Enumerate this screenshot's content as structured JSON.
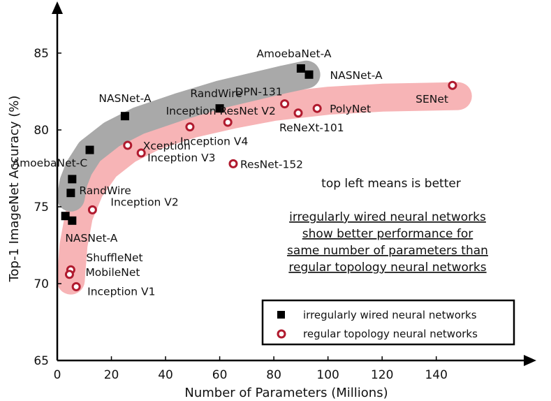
{
  "chart_data": {
    "type": "scatter",
    "xlabel": "Number of Parameters (Millions)",
    "ylabel": "Top-1 ImageNet Accuracy (%)",
    "xlim": [
      0,
      170
    ],
    "ylim": [
      65,
      88
    ],
    "xticks": [
      0,
      20,
      40,
      60,
      80,
      100,
      120,
      140
    ],
    "yticks": [
      65,
      70,
      75,
      80,
      85
    ],
    "series": [
      {
        "name": "irregularly wired neural networks",
        "marker": "square",
        "color": "#000000",
        "points": [
          {
            "label": "AmoebaNet-A",
            "x": 90,
            "y": 84.0
          },
          {
            "label": "NASNet-A",
            "x": 93,
            "y": 83.6
          },
          {
            "label": "RandWire",
            "x": 60,
            "y": 81.4
          },
          {
            "label": "NASNet-A",
            "x": 25,
            "y": 80.9
          },
          {
            "label": "",
            "x": 12,
            "y": 78.7
          },
          {
            "label": "AmoebaNet-C",
            "x": 5.5,
            "y": 76.8
          },
          {
            "label": "RandWire",
            "x": 5,
            "y": 75.9
          },
          {
            "label": "",
            "x": 3,
            "y": 74.4
          },
          {
            "label": "NASNet-A",
            "x": 5.5,
            "y": 74.1
          }
        ]
      },
      {
        "name": "regular topology neural networks",
        "marker": "ring",
        "color": "#b01a2e",
        "points": [
          {
            "label": "SENet",
            "x": 146,
            "y": 82.9
          },
          {
            "label": "DPN-131",
            "x": 84,
            "y": 81.7
          },
          {
            "label": "PolyNet",
            "x": 96,
            "y": 81.4
          },
          {
            "label": "ReNeXt-101",
            "x": 89,
            "y": 81.1
          },
          {
            "label": "Inception ResNet V2",
            "x": 63,
            "y": 80.5
          },
          {
            "label": "Inception V4",
            "x": 49,
            "y": 80.2
          },
          {
            "label": "Xception",
            "x": 26,
            "y": 79.0
          },
          {
            "label": "Inception V3",
            "x": 31,
            "y": 78.5
          },
          {
            "label": "ResNet-152",
            "x": 65,
            "y": 77.8
          },
          {
            "label": "Inception V2",
            "x": 13,
            "y": 74.8
          },
          {
            "label": "ShuffleNet",
            "x": 5,
            "y": 70.9
          },
          {
            "label": "MobileNet",
            "x": 4.5,
            "y": 70.6
          },
          {
            "label": "Inception V1",
            "x": 7,
            "y": 69.8
          }
        ]
      }
    ],
    "annotations": [
      "top left means is better",
      "irregularly wired neural networks",
      "show better performance for",
      "same number of parameters than",
      "regular topology neural networks"
    ],
    "legend": {
      "position": "bottom-right",
      "entries": [
        "irregularly wired neural networks",
        "regular topology neural networks"
      ]
    },
    "band_colors": {
      "irregular": "#a9a9a9",
      "regular": "#f7b4b6"
    }
  }
}
